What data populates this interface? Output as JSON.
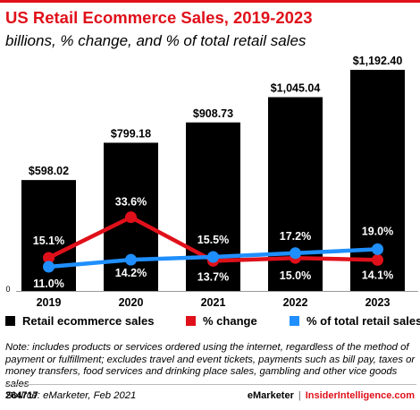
{
  "header": {
    "title": "US Retail Ecommerce Sales, 2019-2023",
    "subtitle": "billions, % change, and % of total retail sales"
  },
  "chart_data": {
    "type": "bar",
    "title": "US Retail Ecommerce Sales, 2019-2023",
    "subtitle": "billions, % change, and % of total retail sales",
    "categories": [
      "2019",
      "2020",
      "2021",
      "2022",
      "2023"
    ],
    "y_axis_tick": "0",
    "ylim": [
      0,
      1192.4
    ],
    "grid": false,
    "legend_placement": "bottom",
    "series": [
      {
        "name": "Retail ecommerce sales",
        "type": "bar",
        "color": "#000000",
        "values": [
          598.02,
          799.18,
          908.73,
          1045.04,
          1192.4
        ],
        "labels": [
          "$598.02",
          "$799.18",
          "$908.73",
          "$1,045.04",
          "$1,192.40"
        ]
      },
      {
        "name": "% change",
        "type": "line",
        "color": "#e0101a",
        "values": [
          15.1,
          33.6,
          13.7,
          15.0,
          14.1
        ],
        "labels": [
          "15.1%",
          "33.6%",
          "13.7%",
          "15.0%",
          "14.1%"
        ]
      },
      {
        "name": "% of total retail sales",
        "type": "line",
        "color": "#1f8fff",
        "values": [
          11.0,
          14.2,
          15.5,
          17.2,
          19.0
        ],
        "labels": [
          "11.0%",
          "14.2%",
          "15.5%",
          "17.2%",
          "19.0%"
        ]
      }
    ]
  },
  "note": "Note: includes products or services ordered using the internet, regardless of the method of payment or fulfillment; excludes travel and event tickets, payments such as bill pay, taxes or money transfers, food services and drinking place sales, gambling and other vice goods sales",
  "source": "Source: eMarketer, Feb 2021",
  "footer": {
    "chart_id": "264717",
    "brand_a": "eMarketer",
    "separator": "|",
    "brand_b": "InsiderIntelligence.com"
  }
}
